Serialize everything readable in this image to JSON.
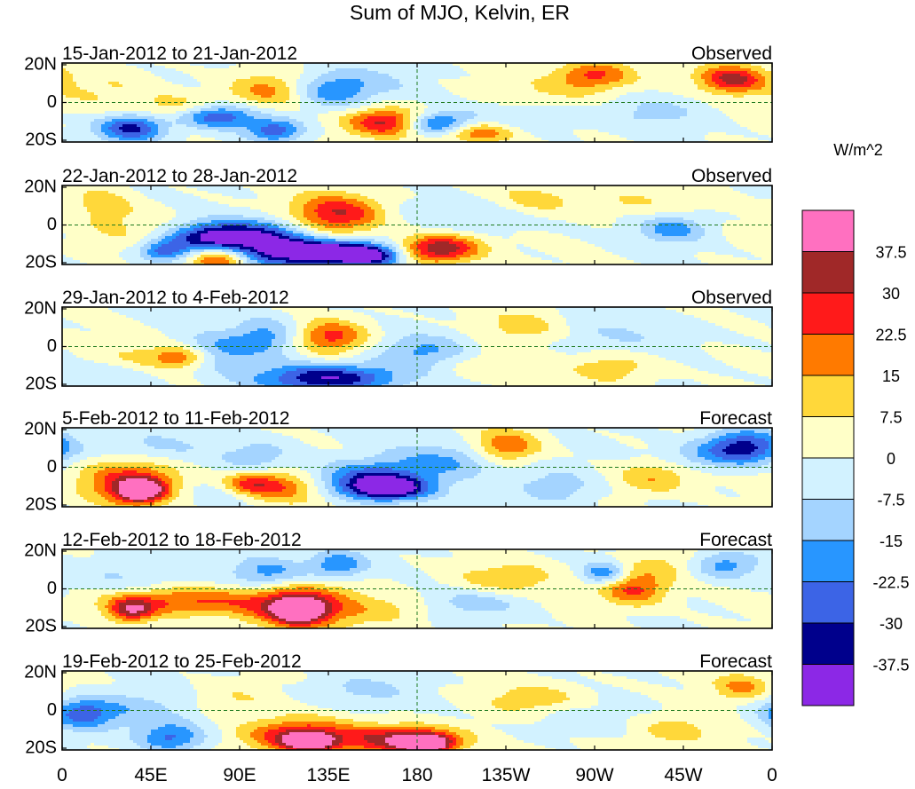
{
  "title": "Sum of MJO, Kelvin, ER",
  "chart_data": {
    "type": "heatmap",
    "title": "Sum of MJO, Kelvin, ER",
    "colorbar": {
      "unit_label": "W/m^2",
      "tick_labels": [
        "37.5",
        "30",
        "22.5",
        "15",
        "7.5",
        "0",
        "-7.5",
        "-15",
        "-22.5",
        "-30",
        "-37.5"
      ],
      "colors": [
        "#ff70c0",
        "#a02828",
        "#ff1a1a",
        "#ff7a00",
        "#ffd83a",
        "#ffffc8",
        "#d2f2ff",
        "#a4d4ff",
        "#2896ff",
        "#3c64e6",
        "#00008c",
        "#8c28e6"
      ]
    },
    "x_ticks": [
      "0",
      "45E",
      "90E",
      "135E",
      "180",
      "135W",
      "90W",
      "45W",
      "0"
    ],
    "y_ticks": [
      "20N",
      "0",
      "20S"
    ],
    "xlim_deg": [
      0,
      360
    ],
    "ylim_deg": [
      -20,
      20
    ],
    "panels": [
      {
        "period": "15-Jan-2012 to 21-Jan-2012",
        "status": "Observed",
        "blobs": [
          [
            35,
            -13,
            12,
            5,
            -34
          ],
          [
            78,
            -7,
            14,
            4,
            -30
          ],
          [
            108,
            -14,
            10,
            4,
            -26
          ],
          [
            105,
            6,
            15,
            6,
            18
          ],
          [
            135,
            5,
            14,
            6,
            -18
          ],
          [
            165,
            -10,
            14,
            5,
            33
          ],
          [
            190,
            -11,
            12,
            4,
            -31
          ],
          [
            210,
            -15,
            14,
            4,
            25
          ],
          [
            150,
            10,
            20,
            6,
            -9
          ],
          [
            230,
            -8,
            20,
            6,
            -9
          ],
          [
            340,
            12,
            12,
            5,
            32
          ],
          [
            270,
            14,
            14,
            5,
            24
          ],
          [
            300,
            -5,
            20,
            6,
            -9
          ],
          [
            20,
            6,
            22,
            8,
            7
          ],
          [
            250,
            5,
            25,
            6,
            7
          ],
          [
            60,
            -3,
            14,
            5,
            12
          ]
        ]
      },
      {
        "period": "22-Jan-2012 to 28-Jan-2012",
        "status": "Observed",
        "blobs": [
          [
            75,
            -6,
            14,
            5,
            -34
          ],
          [
            100,
            -6,
            16,
            6,
            -30
          ],
          [
            120,
            -14,
            18,
            5,
            -42
          ],
          [
            145,
            -14,
            12,
            4,
            -36
          ],
          [
            160,
            -16,
            10,
            4,
            -30
          ],
          [
            140,
            6,
            16,
            7,
            30
          ],
          [
            192,
            -12,
            14,
            5,
            38
          ],
          [
            52,
            -13,
            9,
            4,
            -27
          ],
          [
            80,
            -17,
            10,
            4,
            28
          ],
          [
            310,
            -2,
            12,
            5,
            -19
          ],
          [
            240,
            12,
            16,
            6,
            12
          ],
          [
            30,
            0,
            18,
            8,
            7
          ],
          [
            20,
            12,
            10,
            5,
            9
          ],
          [
            215,
            5,
            26,
            6,
            -9
          ],
          [
            290,
            12,
            20,
            6,
            8
          ]
        ]
      },
      {
        "period": "29-Jan-2012 to 4-Feb-2012",
        "status": "Observed",
        "blobs": [
          [
            135,
            -16,
            25,
            5,
            -38
          ],
          [
            135,
            5,
            14,
            6,
            26
          ],
          [
            105,
            5,
            14,
            7,
            -20
          ],
          [
            75,
            -3,
            14,
            6,
            -18
          ],
          [
            45,
            -6,
            20,
            5,
            11
          ],
          [
            62,
            -5,
            10,
            4,
            22
          ],
          [
            235,
            10,
            16,
            6,
            12
          ],
          [
            280,
            -10,
            16,
            6,
            13
          ],
          [
            185,
            -3,
            18,
            6,
            -18
          ],
          [
            280,
            5,
            30,
            8,
            -7
          ],
          [
            210,
            -8,
            20,
            6,
            9
          ],
          [
            30,
            -12,
            16,
            5,
            -7
          ]
        ]
      },
      {
        "period": "5-Feb-2012 to 11-Feb-2012",
        "status": "Forecast",
        "blobs": [
          [
            35,
            -8,
            18,
            8,
            28
          ],
          [
            40,
            -12,
            8,
            4,
            40
          ],
          [
            155,
            -6,
            22,
            6,
            -28
          ],
          [
            165,
            -11,
            14,
            4,
            -40
          ],
          [
            110,
            -10,
            16,
            6,
            26
          ],
          [
            100,
            5,
            14,
            7,
            -12
          ],
          [
            95,
            -8,
            10,
            4,
            18
          ],
          [
            225,
            10,
            12,
            6,
            25
          ],
          [
            250,
            -10,
            14,
            6,
            -14
          ],
          [
            300,
            -5,
            14,
            6,
            16
          ],
          [
            345,
            10,
            14,
            6,
            -35
          ],
          [
            45,
            10,
            20,
            6,
            -9
          ],
          [
            200,
            4,
            25,
            6,
            -15
          ],
          [
            320,
            5,
            14,
            5,
            -9
          ],
          [
            80,
            -14,
            20,
            5,
            -8
          ]
        ]
      },
      {
        "period": "12-Feb-2012 to 18-Feb-2012",
        "status": "Forecast",
        "blobs": [
          [
            120,
            -9,
            20,
            8,
            33
          ],
          [
            120,
            -11,
            8,
            4,
            42
          ],
          [
            60,
            -6,
            30,
            5,
            24
          ],
          [
            35,
            -11,
            8,
            4,
            30
          ],
          [
            105,
            8,
            14,
            6,
            -20
          ],
          [
            140,
            12,
            10,
            5,
            -22
          ],
          [
            290,
            0,
            12,
            6,
            26
          ],
          [
            275,
            8,
            8,
            4,
            -23
          ],
          [
            335,
            12,
            12,
            5,
            -20
          ],
          [
            225,
            5,
            20,
            6,
            12
          ],
          [
            210,
            -7,
            20,
            5,
            -12
          ],
          [
            30,
            5,
            20,
            8,
            -9
          ],
          [
            170,
            -10,
            16,
            5,
            9
          ],
          [
            305,
            12,
            16,
            5,
            9
          ]
        ]
      },
      {
        "period": "19-Feb-2012 to 25-Feb-2012",
        "status": "Forecast",
        "blobs": [
          [
            120,
            -13,
            20,
            6,
            32
          ],
          [
            175,
            -15,
            20,
            5,
            38
          ],
          [
            125,
            -16,
            8,
            3,
            41
          ],
          [
            185,
            -17,
            8,
            3,
            41
          ],
          [
            30,
            0,
            25,
            7,
            -14
          ],
          [
            10,
            -2,
            10,
            5,
            -20
          ],
          [
            55,
            -14,
            12,
            5,
            -24
          ],
          [
            240,
            5,
            20,
            6,
            12
          ],
          [
            310,
            -10,
            16,
            6,
            12
          ],
          [
            345,
            12,
            10,
            5,
            18
          ],
          [
            85,
            5,
            16,
            6,
            9
          ],
          [
            260,
            -4,
            20,
            6,
            -8
          ],
          [
            150,
            10,
            20,
            6,
            -9
          ]
        ]
      }
    ]
  }
}
